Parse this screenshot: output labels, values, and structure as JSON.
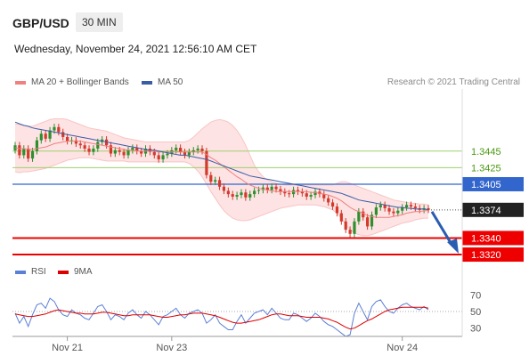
{
  "header": {
    "symbol": "GBP/USD",
    "timeframe": "30 MIN",
    "datetime": "Wednesday, November 24, 2021 12:56:10 AM CET",
    "credit": "Research © 2021 Trading Central"
  },
  "legend_main": [
    {
      "label": "MA 20 + Bollinger Bands",
      "color": "#f08080"
    },
    {
      "label": "MA 50",
      "color": "#3a5da8"
    }
  ],
  "legend_rsi": [
    {
      "label": "RSI",
      "color": "#5b7fd6"
    },
    {
      "label": "9MA",
      "color": "#dd0000"
    }
  ],
  "chart_data": [
    {
      "type": "line",
      "name": "price",
      "ylim": [
        1.3305,
        1.352
      ],
      "levels": [
        {
          "value": 1.3445,
          "label": "1.3445",
          "style": "resistance-light",
          "color": "#9fd06f",
          "text_color": "#4a9a10"
        },
        {
          "value": 1.3425,
          "label": "1.3425",
          "style": "resistance-light",
          "color": "#9fd06f",
          "text_color": "#4a9a10"
        },
        {
          "value": 1.3405,
          "label": "1.3405",
          "style": "resistance",
          "color": "#3366cc",
          "text_color": "#ffffff"
        },
        {
          "value": 1.3374,
          "label": "1.3374",
          "style": "last-price",
          "color": "#222222",
          "text_color": "#ffffff"
        },
        {
          "value": 1.334,
          "label": "1.3340",
          "style": "support",
          "color": "#ee0000",
          "text_color": "#ffffff"
        },
        {
          "value": 1.332,
          "label": "1.3320",
          "style": "support",
          "color": "#ee0000",
          "text_color": "#ffffff"
        }
      ],
      "close": [
        1.3452,
        1.344,
        1.3448,
        1.3436,
        1.3445,
        1.3458,
        1.3466,
        1.346,
        1.347,
        1.3474,
        1.3468,
        1.3462,
        1.3457,
        1.3458,
        1.3454,
        1.3452,
        1.3448,
        1.3444,
        1.3448,
        1.3456,
        1.3459,
        1.3452,
        1.3442,
        1.3446,
        1.3444,
        1.344,
        1.3446,
        1.3449,
        1.3445,
        1.3442,
        1.3448,
        1.3444,
        1.344,
        1.3435,
        1.344,
        1.3442,
        1.3446,
        1.3449,
        1.3444,
        1.344,
        1.3444,
        1.3446,
        1.3448,
        1.3445,
        1.3416,
        1.3408,
        1.341,
        1.3402,
        1.3397,
        1.3393,
        1.339,
        1.3392,
        1.3395,
        1.3389,
        1.3393,
        1.3397,
        1.3398,
        1.3401,
        1.3398,
        1.3402,
        1.3399,
        1.3396,
        1.3394,
        1.3393,
        1.3398,
        1.3396,
        1.3394,
        1.339,
        1.3392,
        1.3396,
        1.3393,
        1.3388,
        1.3383,
        1.3378,
        1.337,
        1.336,
        1.335,
        1.3345,
        1.336,
        1.3372,
        1.3365,
        1.3354,
        1.3368,
        1.3377,
        1.338,
        1.3376,
        1.3372,
        1.337,
        1.3373,
        1.3377,
        1.338,
        1.3378,
        1.3376,
        1.3374,
        1.3376,
        1.3374
      ],
      "ma20": [
        1.3449,
        1.3448,
        1.3448,
        1.3447,
        1.3447,
        1.3448,
        1.3449,
        1.345,
        1.3452,
        1.3454,
        1.3455,
        1.3456,
        1.3457,
        1.3457,
        1.3457,
        1.3457,
        1.3456,
        1.3455,
        1.3454,
        1.3453,
        1.3452,
        1.3451,
        1.345,
        1.3449,
        1.3448,
        1.3447,
        1.3446,
        1.3446,
        1.3445,
        1.3445,
        1.3445,
        1.3445,
        1.3445,
        1.3444,
        1.3444,
        1.3444,
        1.3444,
        1.3444,
        1.3444,
        1.3444,
        1.3444,
        1.3444,
        1.3444,
        1.3444,
        1.3441,
        1.3437,
        1.3434,
        1.343,
        1.3426,
        1.3422,
        1.3418,
        1.3414,
        1.3411,
        1.3407,
        1.3404,
        1.3402,
        1.34,
        1.3399,
        1.3398,
        1.3397,
        1.3396,
        1.3396,
        1.3396,
        1.3396,
        1.3396,
        1.3396,
        1.3396,
        1.3396,
        1.3395,
        1.3395,
        1.3394,
        1.3393,
        1.3392,
        1.339,
        1.3388,
        1.3385,
        1.3381,
        1.3377,
        1.3374,
        1.3372,
        1.337,
        1.3367,
        1.3366,
        1.3365,
        1.3365,
        1.3365,
        1.3365,
        1.3366,
        1.3367,
        1.3368,
        1.337,
        1.3371,
        1.3372,
        1.3372,
        1.3373,
        1.3373
      ],
      "bb_upper": [
        1.3478,
        1.3477,
        1.3476,
        1.3475,
        1.3475,
        1.3477,
        1.3479,
        1.3481,
        1.3483,
        1.3484,
        1.3484,
        1.3484,
        1.3483,
        1.3481,
        1.3479,
        1.3477,
        1.3475,
        1.3473,
        1.3472,
        1.3471,
        1.347,
        1.3469,
        1.3467,
        1.3465,
        1.3463,
        1.3461,
        1.346,
        1.3459,
        1.3458,
        1.3457,
        1.3456,
        1.3456,
        1.3456,
        1.3456,
        1.3456,
        1.3456,
        1.3456,
        1.3456,
        1.3456,
        1.3456,
        1.3458,
        1.3462,
        1.3467,
        1.3472,
        1.3476,
        1.348,
        1.3482,
        1.3483,
        1.3482,
        1.348,
        1.3476,
        1.347,
        1.3462,
        1.3452,
        1.344,
        1.3428,
        1.342,
        1.3414,
        1.341,
        1.3408,
        1.3406,
        1.3405,
        1.3404,
        1.3404,
        1.3404,
        1.3404,
        1.3404,
        1.3404,
        1.3404,
        1.3404,
        1.3404,
        1.3404,
        1.3404,
        1.3404,
        1.3406,
        1.3408,
        1.3408,
        1.3406,
        1.3404,
        1.3402,
        1.34,
        1.3398,
        1.3396,
        1.3394,
        1.3392,
        1.339,
        1.3388,
        1.3386,
        1.3385,
        1.3384,
        1.3383,
        1.3382,
        1.3382,
        1.3381,
        1.3381,
        1.338
      ],
      "bb_lower": [
        1.342,
        1.3419,
        1.342,
        1.342,
        1.3421,
        1.3422,
        1.3423,
        1.3424,
        1.3426,
        1.3428,
        1.343,
        1.3432,
        1.3434,
        1.3435,
        1.3436,
        1.3437,
        1.3437,
        1.3437,
        1.3436,
        1.3435,
        1.3434,
        1.3433,
        1.3433,
        1.3433,
        1.3433,
        1.3433,
        1.3432,
        1.3432,
        1.3432,
        1.3432,
        1.3432,
        1.3432,
        1.3432,
        1.3432,
        1.3432,
        1.3432,
        1.3432,
        1.3432,
        1.3432,
        1.3432,
        1.343,
        1.3426,
        1.3421,
        1.3414,
        1.3405,
        1.3396,
        1.3388,
        1.338,
        1.3373,
        1.3368,
        1.3364,
        1.3362,
        1.3361,
        1.3361,
        1.3362,
        1.3364,
        1.3366,
        1.3368,
        1.337,
        1.3372,
        1.3374,
        1.3376,
        1.3377,
        1.3378,
        1.3379,
        1.338,
        1.338,
        1.338,
        1.338,
        1.338,
        1.3379,
        1.3378,
        1.3376,
        1.3374,
        1.337,
        1.3364,
        1.3356,
        1.335,
        1.3346,
        1.3344,
        1.3343,
        1.3343,
        1.3344,
        1.3346,
        1.3348,
        1.335,
        1.3352,
        1.3354,
        1.3356,
        1.3358,
        1.3359,
        1.336,
        1.3362,
        1.3363,
        1.3364,
        1.3364
      ],
      "ma50": [
        1.348,
        1.3478,
        1.3476,
        1.3475,
        1.3473,
        1.3472,
        1.3471,
        1.347,
        1.3469,
        1.3468,
        1.3467,
        1.3466,
        1.3465,
        1.3464,
        1.3463,
        1.3462,
        1.3461,
        1.346,
        1.3459,
        1.3458,
        1.3457,
        1.3456,
        1.3455,
        1.3454,
        1.3453,
        1.3452,
        1.3451,
        1.345,
        1.3449,
        1.3448,
        1.3447,
        1.3446,
        1.3446,
        1.3445,
        1.3444,
        1.3443,
        1.3442,
        1.3441,
        1.344,
        1.344,
        1.3439,
        1.3438,
        1.3437,
        1.3436,
        1.3435,
        1.3433,
        1.3431,
        1.3429,
        1.3427,
        1.3425,
        1.3423,
        1.3421,
        1.3419,
        1.3417,
        1.3415,
        1.3414,
        1.3413,
        1.3412,
        1.3411,
        1.341,
        1.3409,
        1.3408,
        1.3407,
        1.3406,
        1.3405,
        1.3404,
        1.3403,
        1.3402,
        1.3401,
        1.34,
        1.3399,
        1.3398,
        1.3397,
        1.3396,
        1.3395,
        1.3394,
        1.3392,
        1.339,
        1.3388,
        1.3386,
        1.3385,
        1.3384,
        1.3383,
        1.3382,
        1.3381,
        1.338,
        1.3379,
        1.3378,
        1.3377,
        1.3377,
        1.3376,
        1.3376,
        1.3375,
        1.3375,
        1.3375,
        1.3374
      ],
      "forecast": {
        "from": 1.3374,
        "to": 1.332,
        "direction": "down"
      }
    },
    {
      "type": "line",
      "name": "rsi-panel",
      "ylim": [
        20,
        80
      ],
      "ticks": [
        {
          "value": 70,
          "label": "70"
        },
        {
          "value": 50,
          "label": "50"
        },
        {
          "value": 30,
          "label": "30"
        }
      ],
      "rsi": [
        48,
        36,
        44,
        32,
        46,
        58,
        60,
        54,
        66,
        62,
        52,
        46,
        44,
        52,
        48,
        46,
        42,
        40,
        48,
        56,
        58,
        50,
        40,
        46,
        44,
        40,
        48,
        52,
        46,
        42,
        50,
        46,
        40,
        34,
        44,
        46,
        50,
        54,
        46,
        42,
        48,
        50,
        52,
        48,
        36,
        40,
        46,
        36,
        32,
        28,
        28,
        38,
        46,
        36,
        42,
        48,
        50,
        52,
        46,
        54,
        48,
        42,
        40,
        40,
        48,
        46,
        42,
        38,
        42,
        48,
        44,
        38,
        34,
        32,
        28,
        24,
        20,
        22,
        48,
        60,
        50,
        40,
        56,
        62,
        64,
        56,
        50,
        48,
        54,
        58,
        60,
        56,
        54,
        52,
        56,
        52
      ],
      "ma9": [
        47,
        46,
        45,
        44,
        44,
        45,
        46,
        47,
        49,
        51,
        52,
        51,
        50,
        49,
        48,
        48,
        47,
        47,
        47,
        48,
        49,
        49,
        48,
        47,
        46,
        45,
        45,
        46,
        46,
        46,
        46,
        46,
        45,
        44,
        43,
        43,
        44,
        45,
        46,
        46,
        47,
        48,
        48,
        48,
        47,
        46,
        45,
        43,
        41,
        39,
        37,
        36,
        36,
        37,
        38,
        39,
        40,
        42,
        44,
        46,
        47,
        47,
        46,
        45,
        45,
        45,
        44,
        43,
        43,
        43,
        43,
        42,
        41,
        39,
        37,
        34,
        31,
        29,
        30,
        33,
        36,
        39,
        41,
        44,
        47,
        50,
        52,
        53,
        54,
        55,
        55,
        55,
        55,
        55,
        55,
        54
      ]
    }
  ],
  "x_axis": {
    "ticks": [
      {
        "label": "Nov 21",
        "index": 12
      },
      {
        "label": "Nov 23",
        "index": 36
      },
      {
        "label": "Nov 24",
        "index": 89
      }
    ]
  }
}
